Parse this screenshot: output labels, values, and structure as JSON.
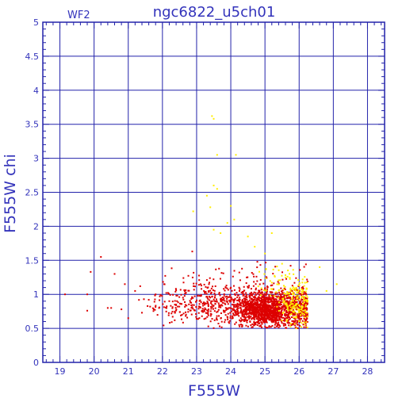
{
  "chart_data": {
    "type": "scatter",
    "title": "ngc6822_u5ch01",
    "corner_label": "WF2",
    "xlabel": "F555W",
    "ylabel": "F555W chi",
    "xlim": [
      18.5,
      28.5
    ],
    "ylim": [
      0,
      5
    ],
    "x_ticks": [
      "19",
      "20",
      "21",
      "22",
      "23",
      "24",
      "25",
      "26",
      "27",
      "28"
    ],
    "y_ticks": [
      "0",
      "0.5",
      "1",
      "1.5",
      "2",
      "2.5",
      "3",
      "3.5",
      "4",
      "4.5",
      "5"
    ],
    "grid": true,
    "colors": {
      "axis": "#2222aa",
      "grid": "#2222aa",
      "text": "#3333bb",
      "series_main": "#dd0000",
      "series_flag": "#ffee00"
    },
    "series": [
      {
        "color": "#dd0000",
        "description_points": [
          [
            19.15,
            1.0
          ],
          [
            19.8,
            1.0
          ],
          [
            19.9,
            1.33
          ],
          [
            19.8,
            0.76
          ],
          [
            20.2,
            1.55
          ],
          [
            20.4,
            0.8
          ],
          [
            20.5,
            0.8
          ],
          [
            20.6,
            1.3
          ],
          [
            20.8,
            0.78
          ],
          [
            20.9,
            1.15
          ],
          [
            21.0,
            0.65
          ],
          [
            21.2,
            1.05
          ],
          [
            21.35,
            1.12
          ],
          [
            21.4,
            0.73
          ],
          [
            21.6,
            0.92
          ],
          [
            21.8,
            1.0
          ],
          [
            21.9,
            0.8
          ],
          [
            22.05,
            1.15
          ],
          [
            22.2,
            0.9
          ],
          [
            22.4,
            0.85
          ]
        ],
        "clusters": [
          {
            "x_center": 24.9,
            "y_center": 0.78,
            "x_spread": 0.35,
            "y_spread": 0.12,
            "count": 900
          },
          {
            "x_center": 25.8,
            "y_center": 0.8,
            "x_spread": 0.35,
            "y_spread": 0.14,
            "count": 500
          },
          {
            "x_center": 23.6,
            "y_center": 0.85,
            "x_spread": 0.8,
            "y_spread": 0.14,
            "count": 380
          },
          {
            "x_center": 24.6,
            "y_center": 1.1,
            "x_spread": 1.0,
            "y_spread": 0.22,
            "count": 130
          },
          {
            "x_center": 22.6,
            "y_center": 0.9,
            "x_spread": 0.5,
            "y_spread": 0.15,
            "count": 60
          }
        ]
      },
      {
        "color": "#ffee00",
        "description_points": [
          [
            23.45,
            3.62
          ],
          [
            23.5,
            3.58
          ],
          [
            23.6,
            3.05
          ],
          [
            24.15,
            3.05
          ],
          [
            23.5,
            2.6
          ],
          [
            23.6,
            2.55
          ],
          [
            23.3,
            2.45
          ],
          [
            22.9,
            2.22
          ],
          [
            23.4,
            2.28
          ],
          [
            24.0,
            2.3
          ],
          [
            23.9,
            2.05
          ],
          [
            24.1,
            2.1
          ],
          [
            23.5,
            1.95
          ],
          [
            23.7,
            1.9
          ],
          [
            24.5,
            1.85
          ],
          [
            25.2,
            1.9
          ],
          [
            24.7,
            1.7
          ],
          [
            25.0,
            1.6
          ],
          [
            25.5,
            1.45
          ],
          [
            26.6,
            1.4
          ],
          [
            27.1,
            1.15
          ],
          [
            26.8,
            1.05
          ]
        ],
        "clusters": [
          {
            "x_center": 25.95,
            "y_center": 0.9,
            "x_spread": 0.25,
            "y_spread": 0.18,
            "count": 180
          },
          {
            "x_center": 25.4,
            "y_center": 1.15,
            "x_spread": 0.3,
            "y_spread": 0.15,
            "count": 40
          }
        ]
      }
    ]
  }
}
